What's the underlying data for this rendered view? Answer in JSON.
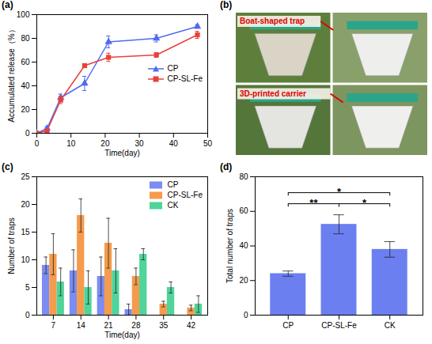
{
  "chart_data": [
    {
      "panel": "(a)",
      "type": "line",
      "x": [
        0,
        3,
        7,
        14,
        21,
        35,
        47
      ],
      "xlim": [
        0,
        50
      ],
      "xticks": [
        0,
        10,
        20,
        30,
        40,
        50
      ],
      "ylim": [
        0,
        100
      ],
      "yticks": [
        0,
        20,
        40,
        60,
        80,
        100
      ],
      "xlabel": "Time(day)",
      "ylabel": "Accumulated release（%）",
      "legend": "right",
      "series": [
        {
          "name": "CP",
          "color": "#4f6bed",
          "marker": "triangle",
          "values": [
            0,
            4,
            30,
            42,
            77,
            80,
            90
          ],
          "errors": [
            0,
            1.5,
            3,
            6,
            5,
            3,
            1.5
          ]
        },
        {
          "name": "CP-SL-Fe",
          "color": "#e8413c",
          "marker": "square",
          "values": [
            0,
            2,
            28,
            57,
            64,
            66,
            83
          ],
          "errors": [
            0,
            1,
            3,
            1.5,
            3.5,
            2,
            3
          ]
        }
      ]
    },
    {
      "panel": "(c)",
      "type": "bar",
      "categories": [
        7,
        14,
        21,
        28,
        35,
        42
      ],
      "ylim": [
        0,
        25
      ],
      "yticks": [
        0,
        5,
        10,
        15,
        20,
        25
      ],
      "xlabel": "Time(day)",
      "ylabel": "Number of traps",
      "legend": "top-right",
      "series": [
        {
          "name": "CP",
          "color": "#7b8cf2",
          "values": [
            9,
            8,
            7,
            1,
            0,
            0
          ],
          "errors": [
            1.5,
            3.8,
            3.5,
            1,
            0,
            0
          ]
        },
        {
          "name": "CP-SL-Fe",
          "color": "#f59b4c",
          "values": [
            11,
            18,
            13,
            7,
            2,
            1.3
          ],
          "errors": [
            3.7,
            3,
            4.5,
            1.5,
            0.5,
            0.5
          ]
        },
        {
          "name": "CK",
          "color": "#4fd49a",
          "values": [
            6,
            5,
            8,
            11,
            5,
            2
          ],
          "errors": [
            2.5,
            3,
            4,
            1,
            1,
            1.5
          ]
        }
      ]
    },
    {
      "panel": "(d)",
      "type": "bar",
      "categories": [
        "CP",
        "CP-SL-Fe",
        "CK"
      ],
      "values": [
        24,
        52.5,
        38
      ],
      "errors": [
        1.5,
        5.5,
        4.5
      ],
      "color": "#6b7ff0",
      "ylim": [
        0,
        80
      ],
      "yticks": [
        0,
        20,
        40,
        60,
        80
      ],
      "ylabel": "Total number of traps",
      "significance": [
        {
          "pair": [
            "CP",
            "CP-SL-Fe"
          ],
          "label": "**"
        },
        {
          "pair": [
            "CP-SL-Fe",
            "CK"
          ],
          "label": "*"
        },
        {
          "pair": [
            "CP",
            "CK"
          ],
          "label": "*"
        }
      ]
    }
  ],
  "photo_panel": {
    "panel": "(b)",
    "labels": [
      "Boat-shaped trap",
      "3D-printed carrier"
    ]
  }
}
